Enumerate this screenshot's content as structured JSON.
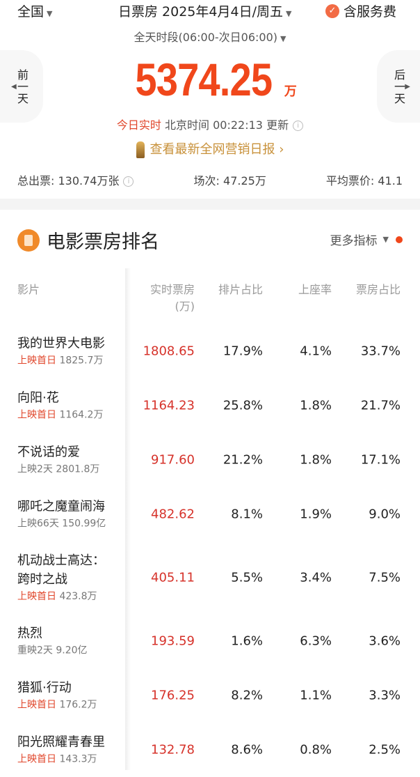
{
  "header": {
    "region": "全国",
    "date": "日票房 2025年4月4日/周五",
    "service_fee": "含服务费",
    "period": "全天时段(06:00-次日06:00)"
  },
  "nav": {
    "prev": "前一天",
    "next": "后一天"
  },
  "summary": {
    "total": "5374.25",
    "unit": "万",
    "realtime_label": "今日实时",
    "update_text": "北京时间 00:22:13 更新",
    "report_link": "查看最新全网营销日报 ›",
    "tickets": "总出票: 130.74万张",
    "shows": "场次: 47.25万",
    "avg_price": "平均票价: 41.1"
  },
  "section": {
    "title": "电影票房排名",
    "more": "更多指标"
  },
  "columns": {
    "film": "影片",
    "realtime": "实时票房",
    "realtime_unit": "(万)",
    "schedule": "排片占比",
    "occupancy": "上座率",
    "share": "票房占比"
  },
  "colors": {
    "accent": "#f0471b",
    "box_office": "#d6322a",
    "highlight": "#e0452a"
  },
  "movies": [
    {
      "name": "我的世界大电影",
      "tag": "上映首日",
      "tag_hl": true,
      "cum": "1825.7万",
      "bo": "1808.65",
      "schedule": "17.9%",
      "occupancy": "4.1%",
      "share": "33.7%"
    },
    {
      "name": "向阳·花",
      "tag": "上映首日",
      "tag_hl": true,
      "cum": "1164.2万",
      "bo": "1164.23",
      "schedule": "25.8%",
      "occupancy": "1.8%",
      "share": "21.7%"
    },
    {
      "name": "不说话的爱",
      "tag": "上映2天",
      "tag_hl": false,
      "cum": "2801.8万",
      "bo": "917.60",
      "schedule": "21.2%",
      "occupancy": "1.8%",
      "share": "17.1%"
    },
    {
      "name": "哪吒之魔童闹海",
      "tag": "上映66天",
      "tag_hl": false,
      "cum": "150.99亿",
      "bo": "482.62",
      "schedule": "8.1%",
      "occupancy": "1.9%",
      "share": "9.0%"
    },
    {
      "name": "机动战士高达：跨时之战",
      "tag": "上映首日",
      "tag_hl": true,
      "cum": "423.8万",
      "bo": "405.11",
      "schedule": "5.5%",
      "occupancy": "3.4%",
      "share": "7.5%"
    },
    {
      "name": "热烈",
      "tag": "重映2天",
      "tag_hl": false,
      "cum": "9.20亿",
      "bo": "193.59",
      "schedule": "1.6%",
      "occupancy": "6.3%",
      "share": "3.6%"
    },
    {
      "name": "猎狐·行动",
      "tag": "上映首日",
      "tag_hl": true,
      "cum": "176.2万",
      "bo": "176.25",
      "schedule": "8.2%",
      "occupancy": "1.1%",
      "share": "3.3%"
    },
    {
      "name": "阳光照耀青春里",
      "tag": "上映首日",
      "tag_hl": true,
      "cum": "143.3万",
      "bo": "132.78",
      "schedule": "8.6%",
      "occupancy": "0.8%",
      "share": "2.5%"
    }
  ]
}
